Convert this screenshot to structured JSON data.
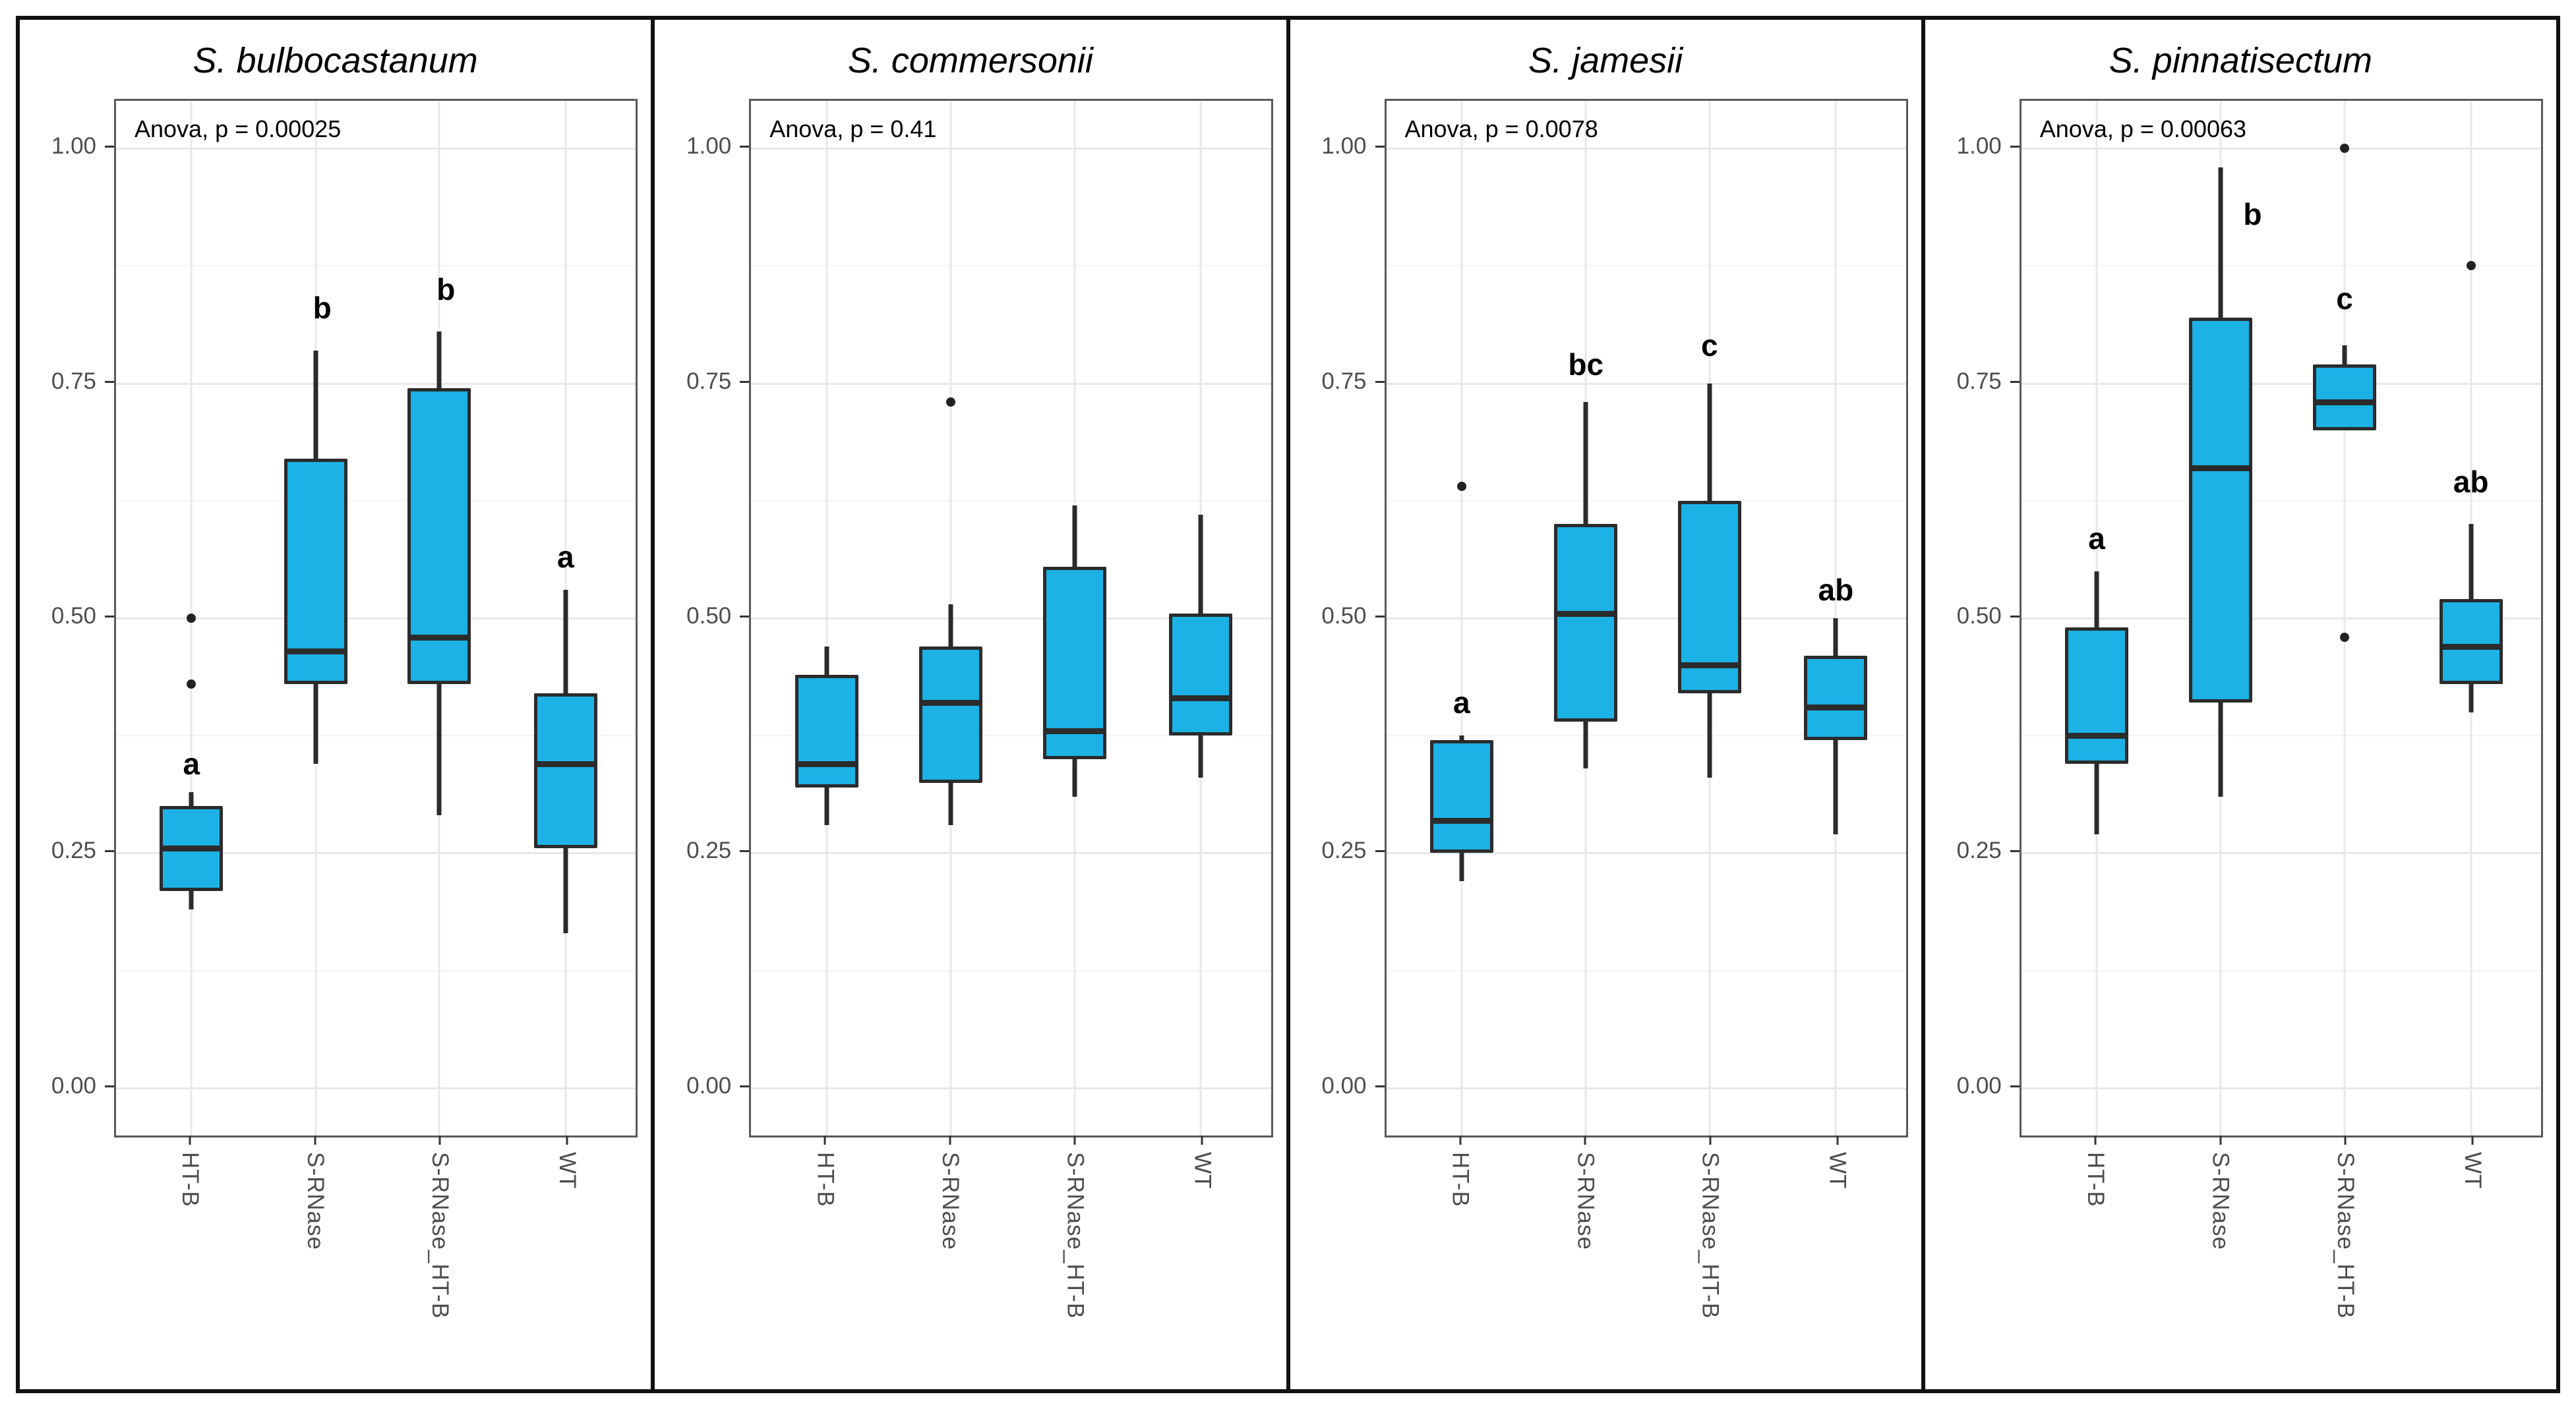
{
  "colors": {
    "box_fill": "#1CB2E5",
    "box_stroke": "#2b2b2b",
    "outlier": "#222222",
    "grid_major": "#e8e8e8",
    "grid_minor": "#f4f4f4",
    "panel_border": "#595959",
    "outer_frame": "#111111",
    "tick_text": "#4d4d4d",
    "title_text": "#000000"
  },
  "axis": {
    "y_tick_labels": [
      "1.00",
      "0.75",
      "0.50",
      "0.25",
      "0.00"
    ],
    "y_tick_values": [
      1.0,
      0.75,
      0.5,
      0.25,
      0.0
    ],
    "y_minor_values": [
      0.125,
      0.375,
      0.625,
      0.875
    ],
    "ylim": [
      -0.05,
      1.05
    ]
  },
  "chart_data": [
    {
      "type": "boxplot",
      "title": "S. bulbocastanum",
      "anova_label": "Anova, p = 0.00025",
      "categories": [
        "HT-B",
        "S-RNase",
        "S-RNase_HT-B",
        "WT"
      ],
      "ylim": [
        0,
        1
      ],
      "groups": [
        {
          "category": "HT-B",
          "letter": "a",
          "letter_y": 0.345,
          "letter_dx": 0,
          "whisker_low": 0.19,
          "q1": 0.21,
          "median": 0.255,
          "q3": 0.3,
          "whisker_high": 0.315,
          "outliers": [
            0.43,
            0.5
          ]
        },
        {
          "category": "S-RNase",
          "letter": "b",
          "letter_y": 0.83,
          "letter_dx": 10,
          "whisker_low": 0.345,
          "q1": 0.43,
          "median": 0.465,
          "q3": 0.67,
          "whisker_high": 0.785,
          "outliers": []
        },
        {
          "category": "S-RNase_HT-B",
          "letter": "b",
          "letter_y": 0.85,
          "letter_dx": 10,
          "whisker_low": 0.29,
          "q1": 0.43,
          "median": 0.48,
          "q3": 0.745,
          "whisker_high": 0.805,
          "outliers": []
        },
        {
          "category": "WT",
          "letter": "a",
          "letter_y": 0.565,
          "letter_dx": 0,
          "whisker_low": 0.165,
          "q1": 0.255,
          "median": 0.345,
          "q3": 0.42,
          "whisker_high": 0.53,
          "outliers": []
        }
      ]
    },
    {
      "type": "boxplot",
      "title": "S. commersonii",
      "anova_label": "Anova, p = 0.41",
      "categories": [
        "HT-B",
        "S-RNase",
        "S-RNase_HT-B",
        "WT"
      ],
      "ylim": [
        0,
        1
      ],
      "groups": [
        {
          "category": "HT-B",
          "letter": "",
          "letter_y": null,
          "letter_dx": 0,
          "whisker_low": 0.28,
          "q1": 0.32,
          "median": 0.345,
          "q3": 0.44,
          "whisker_high": 0.47,
          "outliers": []
        },
        {
          "category": "S-RNase",
          "letter": "",
          "letter_y": null,
          "letter_dx": 0,
          "whisker_low": 0.28,
          "q1": 0.325,
          "median": 0.41,
          "q3": 0.47,
          "whisker_high": 0.515,
          "outliers": [
            0.73
          ]
        },
        {
          "category": "S-RNase_HT-B",
          "letter": "",
          "letter_y": null,
          "letter_dx": 0,
          "whisker_low": 0.31,
          "q1": 0.35,
          "median": 0.38,
          "q3": 0.555,
          "whisker_high": 0.62,
          "outliers": []
        },
        {
          "category": "WT",
          "letter": "",
          "letter_y": null,
          "letter_dx": 0,
          "whisker_low": 0.33,
          "q1": 0.375,
          "median": 0.415,
          "q3": 0.505,
          "whisker_high": 0.61,
          "outliers": []
        }
      ]
    },
    {
      "type": "boxplot",
      "title": "S. jamesii",
      "anova_label": "Anova, p = 0.0078",
      "categories": [
        "HT-B",
        "S-RNase",
        "S-RNase_HT-B",
        "WT"
      ],
      "ylim": [
        0,
        1
      ],
      "groups": [
        {
          "category": "HT-B",
          "letter": "a",
          "letter_y": 0.41,
          "letter_dx": 0,
          "whisker_low": 0.22,
          "q1": 0.25,
          "median": 0.285,
          "q3": 0.37,
          "whisker_high": 0.375,
          "outliers": [
            0.64
          ]
        },
        {
          "category": "S-RNase",
          "letter": "bc",
          "letter_y": 0.77,
          "letter_dx": 0,
          "whisker_low": 0.34,
          "q1": 0.39,
          "median": 0.505,
          "q3": 0.6,
          "whisker_high": 0.73,
          "outliers": []
        },
        {
          "category": "S-RNase_HT-B",
          "letter": "c",
          "letter_y": 0.79,
          "letter_dx": 0,
          "whisker_low": 0.33,
          "q1": 0.42,
          "median": 0.45,
          "q3": 0.625,
          "whisker_high": 0.75,
          "outliers": []
        },
        {
          "category": "WT",
          "letter": "ab",
          "letter_y": 0.53,
          "letter_dx": 0,
          "whisker_low": 0.27,
          "q1": 0.37,
          "median": 0.405,
          "q3": 0.46,
          "whisker_high": 0.5,
          "outliers": []
        }
      ]
    },
    {
      "type": "boxplot",
      "title": "S. pinnatisectum",
      "anova_label": "Anova, p = 0.00063",
      "categories": [
        "HT-B",
        "S-RNase",
        "S-RNase_HT-B",
        "WT"
      ],
      "ylim": [
        0,
        1
      ],
      "groups": [
        {
          "category": "HT-B",
          "letter": "a",
          "letter_y": 0.585,
          "letter_dx": 0,
          "whisker_low": 0.27,
          "q1": 0.345,
          "median": 0.375,
          "q3": 0.49,
          "whisker_high": 0.55,
          "outliers": []
        },
        {
          "category": "S-RNase",
          "letter": "b",
          "letter_y": 0.93,
          "letter_dx": 48,
          "whisker_low": 0.31,
          "q1": 0.41,
          "median": 0.66,
          "q3": 0.82,
          "whisker_high": 0.98,
          "outliers": []
        },
        {
          "category": "S-RNase_HT-B",
          "letter": "c",
          "letter_y": 0.84,
          "letter_dx": 0,
          "whisker_low": 0.7,
          "q1": 0.7,
          "median": 0.73,
          "q3": 0.77,
          "whisker_high": 0.79,
          "outliers": [
            1.0,
            0.48
          ]
        },
        {
          "category": "WT",
          "letter": "ab",
          "letter_y": 0.645,
          "letter_dx": 0,
          "whisker_low": 0.4,
          "q1": 0.43,
          "median": 0.47,
          "q3": 0.52,
          "whisker_high": 0.6,
          "outliers": [
            0.875
          ]
        }
      ]
    }
  ]
}
